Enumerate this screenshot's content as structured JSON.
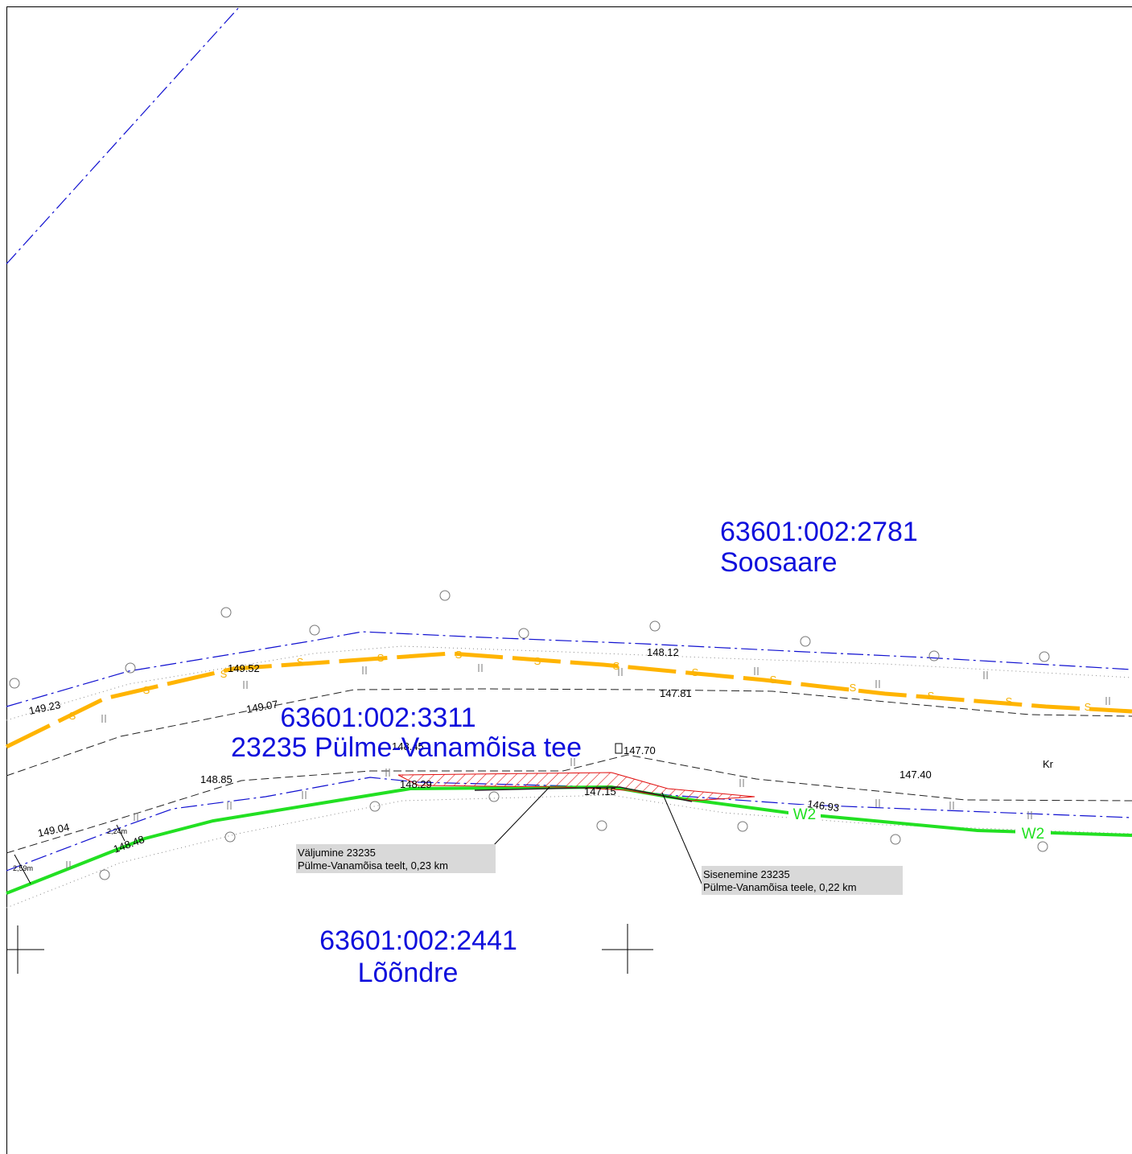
{
  "parcels": [
    {
      "id": "63601:002:2781",
      "name": "Soosaare"
    },
    {
      "id": "63601:002:3311",
      "name": "23235 Pülme-Vanamõisa tee"
    },
    {
      "id": "63601:002:2441",
      "name": "Lõõndre"
    }
  ],
  "elevations": [
    "149.23",
    "149.52",
    "149.07",
    "148.45",
    "148.29",
    "148.12",
    "147.81",
    "147.70",
    "147.40",
    "146.93",
    "148.85",
    "149.04",
    "148.48",
    "147.15"
  ],
  "dimensions": [
    "2,24m",
    "2,59m"
  ],
  "line_codes": {
    "sewer": "S",
    "water": "W2"
  },
  "small_label": "Kr",
  "callouts": [
    {
      "line1": "Väljumine 23235",
      "line2": "Pülme-Vanamõisa teelt, 0,23 km"
    },
    {
      "line1": "Sisenemine 23235",
      "line2": "Pülme-Vanamõisa teele, 0,22 km"
    }
  ],
  "colors": {
    "sewer": "#ffb400",
    "water": "#22e022",
    "boundary": "#1010d0",
    "hatch": "#e01010",
    "label_blue": "#0f0fdc",
    "callout_bg": "#d9d9d9"
  }
}
